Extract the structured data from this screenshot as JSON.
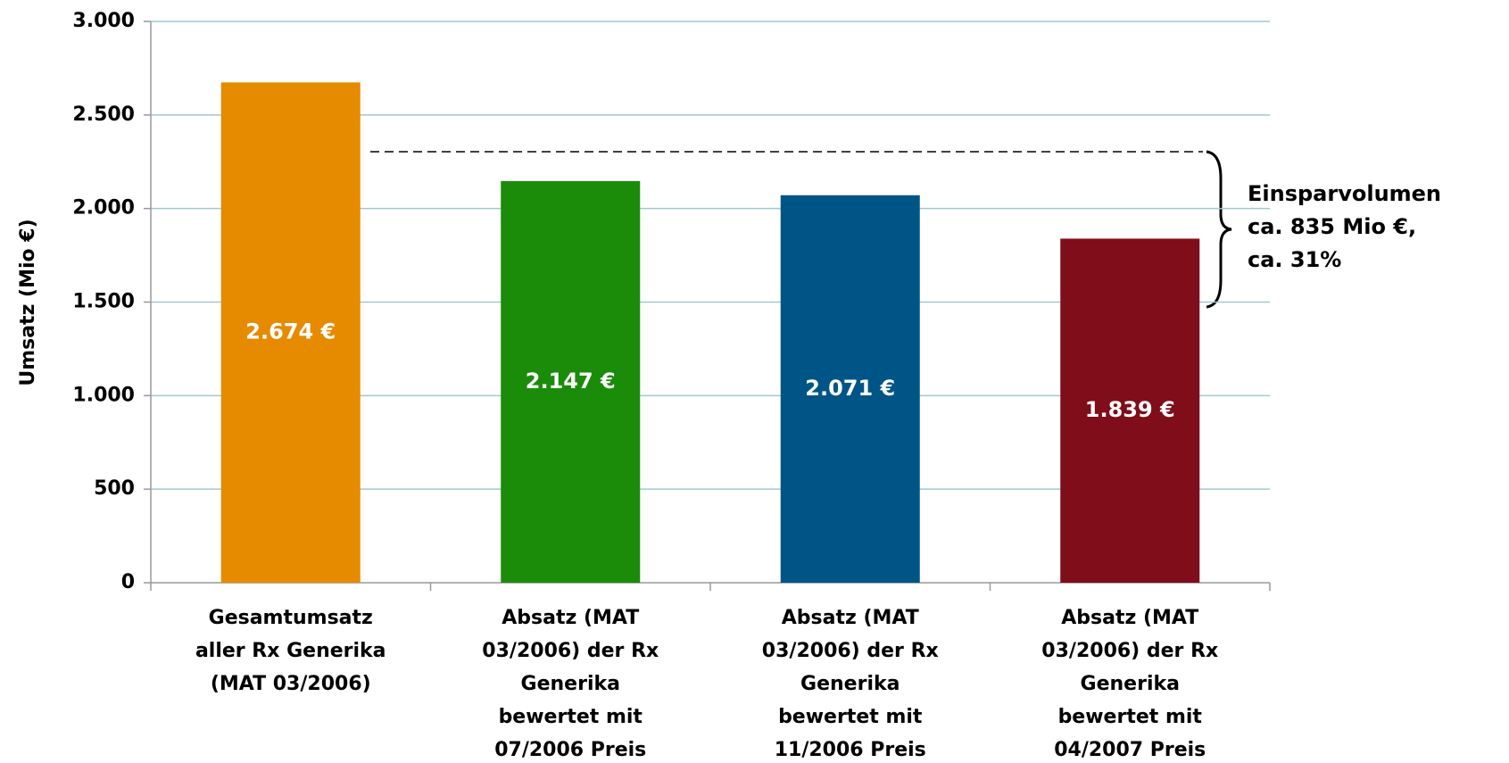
{
  "chart_data": {
    "type": "bar",
    "y_label": "Umsatz  (Mio €)",
    "categories": [
      [
        "Gesamtumsatz",
        "aller Rx Generika",
        "(MAT 03/2006)"
      ],
      [
        "Absatz (MAT",
        "03/2006) der Rx",
        "Generika",
        "bewertet mit",
        "07/2006 Preis"
      ],
      [
        "Absatz (MAT",
        "03/2006) der Rx",
        "Generika",
        "bewertet mit",
        "11/2006 Preis"
      ],
      [
        "Absatz (MAT",
        "03/2006) der Rx",
        "Generika",
        "bewertet mit",
        "04/2007 Preis"
      ]
    ],
    "values": [
      2674,
      2147,
      2071,
      1839
    ],
    "value_labels": [
      "2.674 €",
      "2.147 €",
      "2.071 €",
      "1.839 €"
    ],
    "colors": [
      "#e68a00",
      "#1a8c0a",
      "#005587",
      "#7f0d1a"
    ],
    "ylim": [
      0,
      3000
    ],
    "yticks": [
      0,
      500,
      {
        "value": 1000,
        "label": "1.000"
      },
      {
        "value": 1500,
        "label": "1.500"
      },
      {
        "value": 2000,
        "label": "2.000"
      },
      {
        "value": 2500,
        "label": "2.500"
      },
      {
        "value": 3000,
        "label": "3.000"
      }
    ],
    "grid": true,
    "annotation": [
      "Einsparvolumen",
      "ca. 835 Mio €,",
      "ca. 31%"
    ]
  }
}
